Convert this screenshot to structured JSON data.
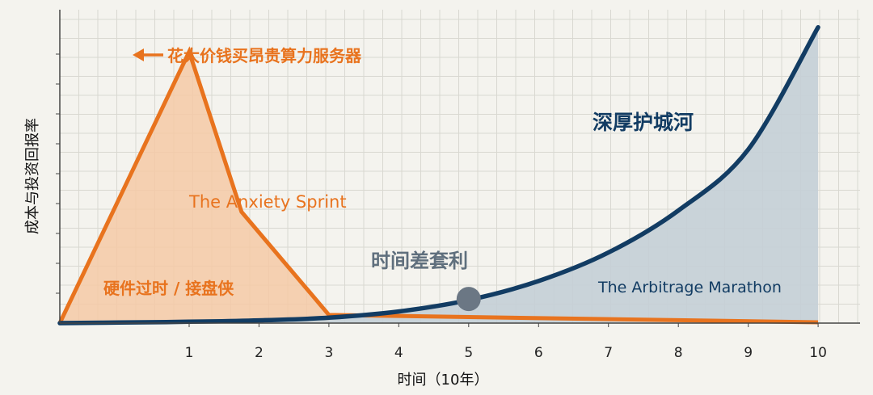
{
  "chart_data": {
    "type": "area",
    "xlabel": "时间（10年）",
    "ylabel": "成本与投资回报率",
    "x_ticks": [
      1,
      2,
      3,
      4,
      5,
      6,
      7,
      8,
      9,
      10
    ],
    "xlim": [
      -0.85,
      10.6
    ],
    "ylim": [
      0,
      100
    ],
    "grid": true,
    "series": [
      {
        "name": "The Anxiety Sprint",
        "color": "#e8731e",
        "fill": "#f5c9a6",
        "x": [
          -0.85,
          1.0,
          1.75,
          3.0,
          10.0
        ],
        "y": [
          0,
          100,
          41,
          3,
          0.3
        ]
      },
      {
        "name": "The Arbitrage Marathon",
        "color": "#123c63",
        "fill": "#c4cfd6",
        "x": [
          -0.85,
          0,
          1,
          2,
          3,
          4,
          5,
          6,
          7,
          8,
          9,
          10
        ],
        "y": [
          0,
          0.2,
          0.5,
          1,
          2,
          4.3,
          8.5,
          15.5,
          26,
          41.5,
          64,
          109
        ]
      }
    ],
    "annotations": {
      "peak": "花大价钱买昂贵算力服务器",
      "moat": "深厚护城河",
      "hardware": "硬件过时 / 接盘侠",
      "arbitrage": "时间差套利"
    },
    "marker": {
      "x": 5,
      "y": 8.9,
      "color": "#6b7784"
    }
  }
}
